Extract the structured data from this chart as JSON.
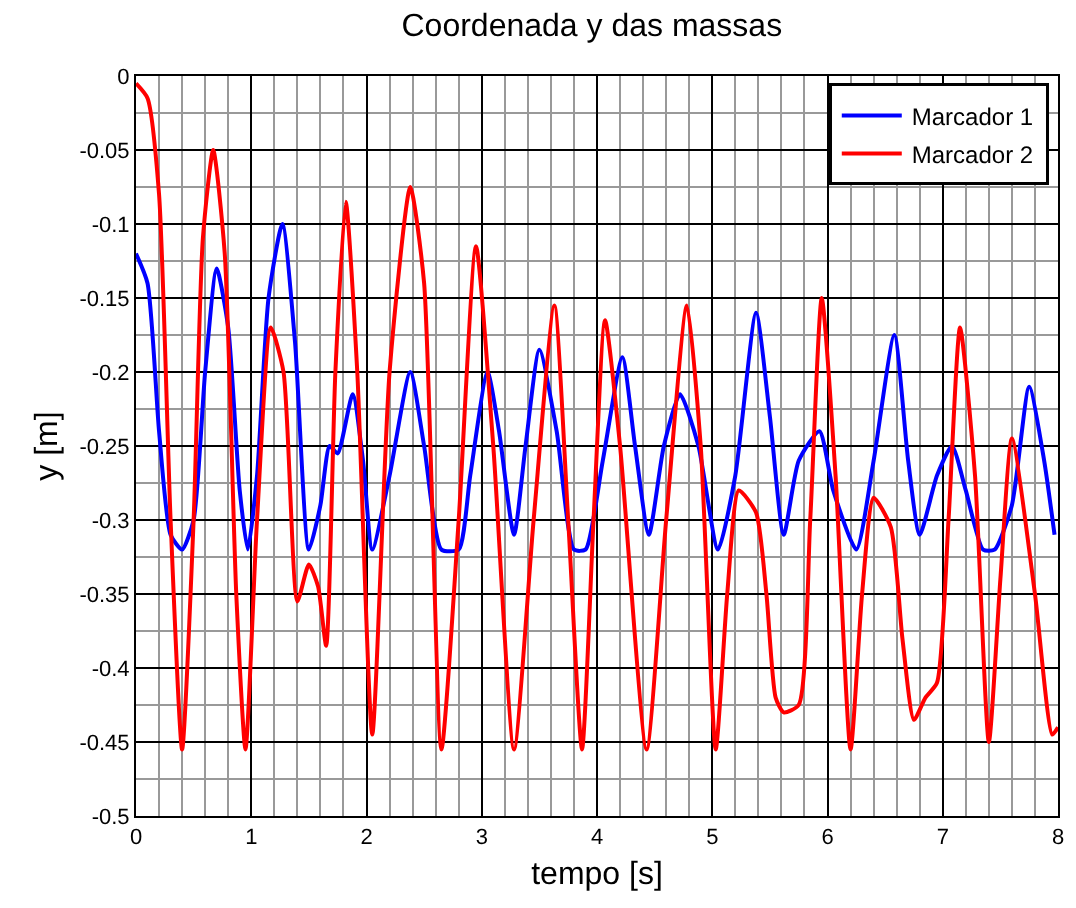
{
  "chart_data": {
    "type": "line",
    "title": "Coordenada y das massas",
    "xlabel": "tempo [s]",
    "ylabel": "y [m]",
    "xlim": [
      0,
      8
    ],
    "xticks": [
      0,
      1,
      2,
      3,
      4,
      5,
      6,
      7,
      8
    ],
    "ylim": [
      -0.5,
      0
    ],
    "yticks": [
      -0.5,
      -0.45,
      -0.4,
      -0.35,
      -0.3,
      -0.25,
      -0.2,
      -0.15,
      -0.1,
      -0.05,
      0
    ],
    "grid": true,
    "legend": "top right",
    "marker": "none",
    "line_style": "solid",
    "series": [
      {
        "name": "Marcador 1",
        "color": "#0000ff",
        "x": [
          0,
          0.1,
          0.2,
          0.3,
          0.4,
          0.5,
          0.6,
          0.7,
          0.8,
          0.9,
          0.97,
          1.05,
          1.15,
          1.27,
          1.38,
          1.5,
          1.6,
          1.68,
          1.75,
          1.88,
          1.97,
          2.05,
          2.2,
          2.38,
          2.5,
          2.65,
          2.8,
          2.9,
          3.05,
          3.15,
          3.28,
          3.38,
          3.5,
          3.65,
          3.8,
          3.9,
          4.05,
          4.22,
          4.33,
          4.45,
          4.58,
          4.72,
          4.88,
          5.05,
          5.2,
          5.38,
          5.5,
          5.62,
          5.75,
          5.93,
          6.05,
          6.25,
          6.4,
          6.58,
          6.7,
          6.8,
          6.95,
          7.08,
          7.2,
          7.35,
          7.45,
          7.6,
          7.75,
          7.88,
          7.97
        ],
        "values": [
          -0.12,
          -0.14,
          -0.24,
          -0.31,
          -0.32,
          -0.3,
          -0.2,
          -0.13,
          -0.17,
          -0.28,
          -0.32,
          -0.27,
          -0.15,
          -0.1,
          -0.18,
          -0.32,
          -0.29,
          -0.25,
          -0.255,
          -0.215,
          -0.26,
          -0.32,
          -0.27,
          -0.2,
          -0.25,
          -0.32,
          -0.32,
          -0.27,
          -0.2,
          -0.24,
          -0.31,
          -0.25,
          -0.185,
          -0.24,
          -0.32,
          -0.32,
          -0.26,
          -0.19,
          -0.25,
          -0.31,
          -0.25,
          -0.215,
          -0.25,
          -0.32,
          -0.27,
          -0.16,
          -0.23,
          -0.31,
          -0.26,
          -0.24,
          -0.28,
          -0.32,
          -0.26,
          -0.175,
          -0.26,
          -0.31,
          -0.27,
          -0.25,
          -0.28,
          -0.32,
          -0.32,
          -0.29,
          -0.21,
          -0.26,
          -0.31
        ]
      },
      {
        "name": "Marcador 2",
        "color": "#ff0000",
        "x": [
          0,
          0.1,
          0.2,
          0.3,
          0.4,
          0.5,
          0.58,
          0.67,
          0.77,
          0.87,
          0.95,
          1.05,
          1.17,
          1.28,
          1.4,
          1.5,
          1.58,
          1.65,
          1.73,
          1.82,
          1.92,
          2.05,
          2.2,
          2.38,
          2.5,
          2.65,
          2.8,
          2.95,
          3.1,
          3.28,
          3.45,
          3.63,
          3.75,
          3.87,
          3.97,
          4.07,
          4.2,
          4.43,
          4.6,
          4.78,
          4.9,
          5.03,
          5.13,
          5.23,
          5.38,
          5.47,
          5.55,
          5.62,
          5.75,
          5.85,
          5.95,
          6.07,
          6.2,
          6.3,
          6.4,
          6.55,
          6.65,
          6.75,
          6.85,
          6.95,
          7.05,
          7.15,
          7.28,
          7.4,
          7.5,
          7.6,
          7.8,
          7.95,
          8
        ],
        "values": [
          -0.005,
          -0.015,
          -0.08,
          -0.3,
          -0.455,
          -0.3,
          -0.11,
          -0.05,
          -0.12,
          -0.35,
          -0.455,
          -0.3,
          -0.17,
          -0.2,
          -0.355,
          -0.33,
          -0.345,
          -0.385,
          -0.2,
          -0.085,
          -0.2,
          -0.445,
          -0.2,
          -0.075,
          -0.14,
          -0.455,
          -0.3,
          -0.115,
          -0.25,
          -0.455,
          -0.3,
          -0.155,
          -0.3,
          -0.455,
          -0.3,
          -0.165,
          -0.25,
          -0.455,
          -0.3,
          -0.155,
          -0.25,
          -0.455,
          -0.35,
          -0.28,
          -0.295,
          -0.35,
          -0.42,
          -0.43,
          -0.425,
          -0.3,
          -0.15,
          -0.27,
          -0.455,
          -0.35,
          -0.285,
          -0.305,
          -0.38,
          -0.435,
          -0.42,
          -0.41,
          -0.3,
          -0.17,
          -0.27,
          -0.45,
          -0.34,
          -0.245,
          -0.35,
          -0.445,
          -0.44
        ]
      }
    ]
  }
}
